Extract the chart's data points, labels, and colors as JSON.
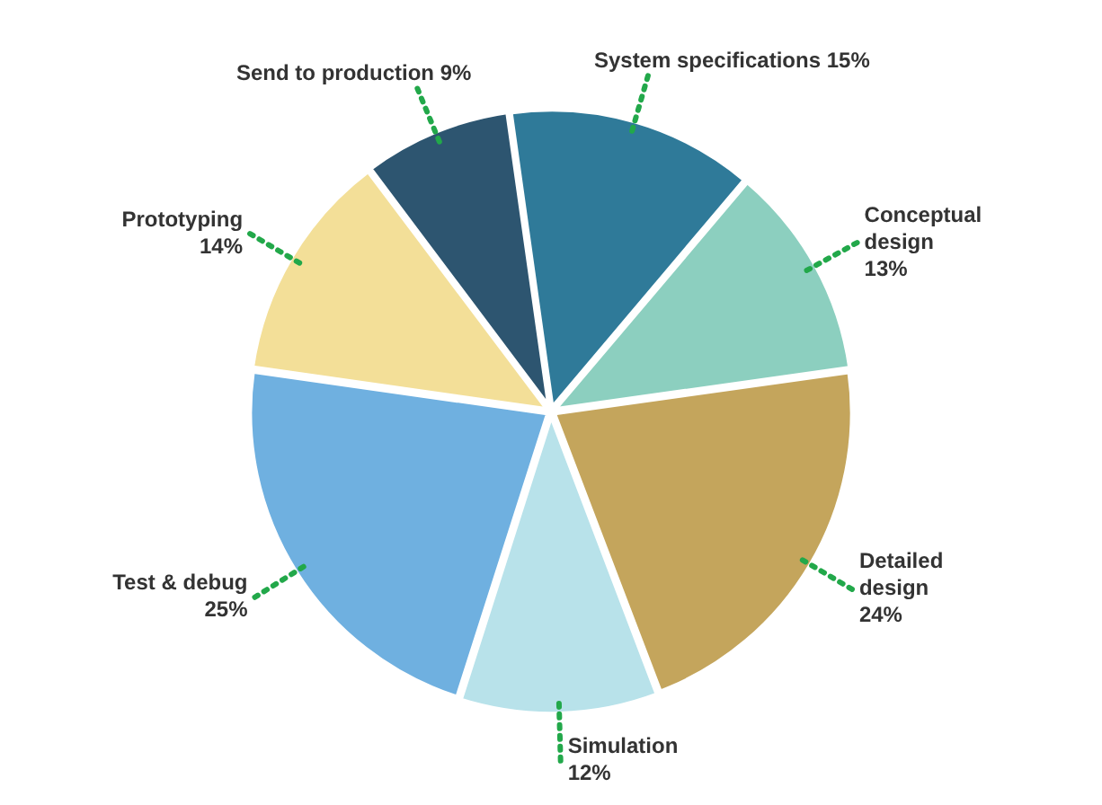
{
  "chart_data": {
    "type": "pie",
    "categories": [
      "System specifications",
      "Conceptual design",
      "Detailed design",
      "Simulation",
      "Test & debug",
      "Prototyping",
      "Send to production"
    ],
    "values": [
      15,
      13,
      24,
      12,
      25,
      14,
      9
    ],
    "value_labels": [
      "15%",
      "13%",
      "24%",
      "12%",
      "25%",
      "14%",
      "9%"
    ],
    "colors": [
      "#2f7a99",
      "#8ccfbf",
      "#c4a55c",
      "#b8e2ea",
      "#6fb0e0",
      "#f3df98",
      "#2d5570"
    ],
    "legend": false
  }
}
